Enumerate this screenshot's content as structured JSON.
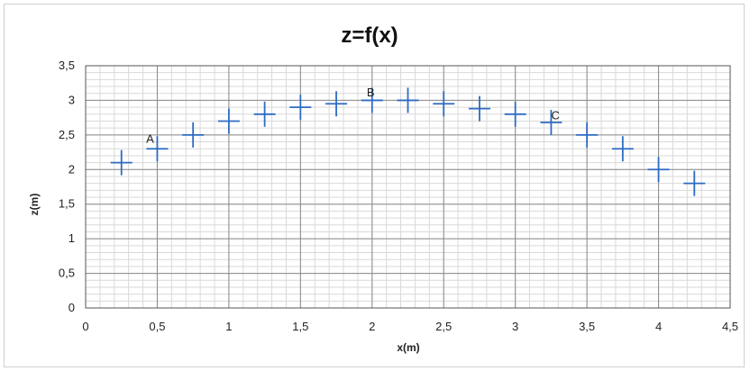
{
  "chart_data": {
    "type": "scatter",
    "title": "z=f(x)",
    "xlabel": "x(m)",
    "ylabel": "z(m)",
    "xlim": [
      0,
      4.5
    ],
    "ylim": [
      0,
      3.5
    ],
    "xticks": [
      "0",
      "0,5",
      "1",
      "1,5",
      "2",
      "2,5",
      "3",
      "3,5",
      "4",
      "4,5"
    ],
    "yticks": [
      "0",
      "0,5",
      "1",
      "1,5",
      "2",
      "2,5",
      "3",
      "3,5"
    ],
    "grid": true,
    "marker": "plus",
    "marker_color": "#2e6bc2",
    "series": [
      {
        "x": [
          0.25,
          0.5,
          0.75,
          1.0,
          1.25,
          1.5,
          1.75,
          2.0,
          2.25,
          2.5,
          2.75,
          3.0,
          3.25,
          3.5,
          3.75,
          4.0,
          4.25
        ],
        "values": [
          2.1,
          2.3,
          2.5,
          2.7,
          2.8,
          2.9,
          2.95,
          3.0,
          3.0,
          2.95,
          2.88,
          2.8,
          2.68,
          2.5,
          2.3,
          2.0,
          1.8
        ]
      }
    ],
    "annotations": [
      {
        "text": "A",
        "x": 0.45,
        "y": 2.45
      },
      {
        "text": "B",
        "x": 1.99,
        "y": 3.12
      },
      {
        "text": "C",
        "x": 3.28,
        "y": 2.79
      }
    ]
  }
}
